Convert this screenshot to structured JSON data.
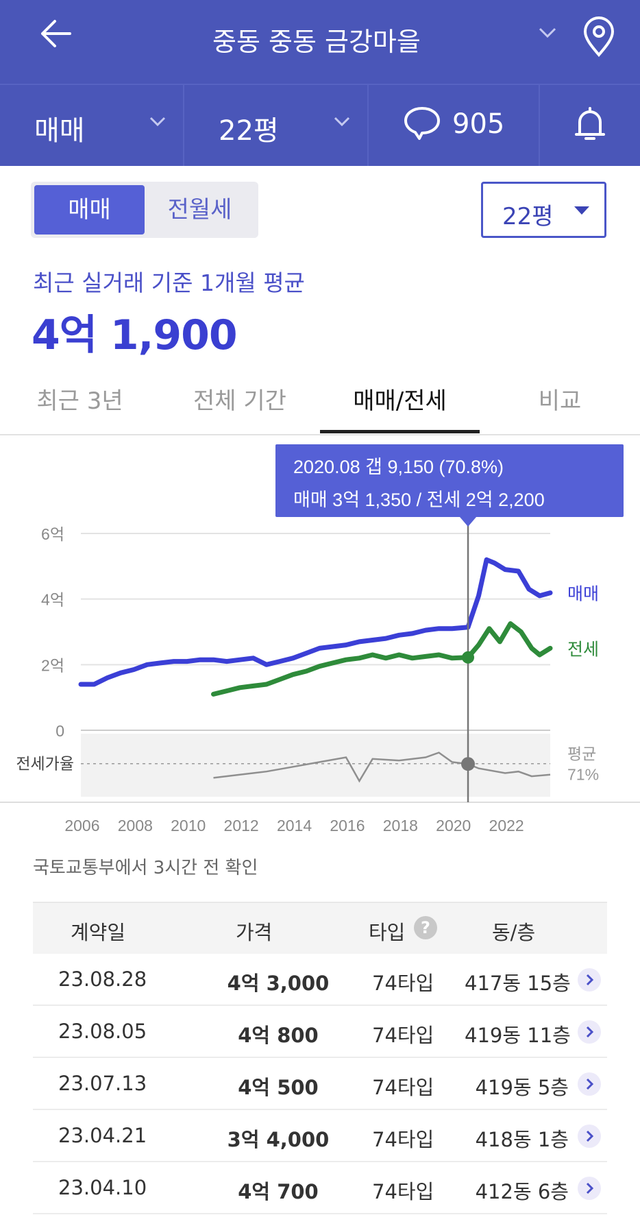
{
  "header": {
    "title": "중동 중동 금강마을",
    "trade_type": "매매",
    "area": "22평",
    "comment_count": "905"
  },
  "segment": {
    "sale": "매매",
    "rent": "전월세"
  },
  "area_select": {
    "value": "22평"
  },
  "average": {
    "label": "최근 실거래 기준 1개월 평균",
    "value": "4억 1,900"
  },
  "tabs": [
    "최근 3년",
    "전체 기간",
    "매매/전세",
    "비교"
  ],
  "chart_data": {
    "type": "line",
    "x_ticks": [
      "2006",
      "2008",
      "2010",
      "2012",
      "2014",
      "2016",
      "2018",
      "2020",
      "2022"
    ],
    "y_ticks": [
      "6억",
      "4억",
      "2억",
      "0"
    ],
    "ylim": [
      0,
      6
    ],
    "y_unit": "억",
    "xlim": [
      2006,
      2023.7
    ],
    "series": [
      {
        "name": "매매",
        "color": "#3b3fd6",
        "points": [
          [
            2006,
            1.4
          ],
          [
            2006.5,
            1.4
          ],
          [
            2007,
            1.6
          ],
          [
            2007.5,
            1.75
          ],
          [
            2008,
            1.85
          ],
          [
            2008.5,
            2.0
          ],
          [
            2009,
            2.05
          ],
          [
            2009.5,
            2.1
          ],
          [
            2010,
            2.1
          ],
          [
            2010.5,
            2.15
          ],
          [
            2011,
            2.15
          ],
          [
            2011.5,
            2.1
          ],
          [
            2012,
            2.15
          ],
          [
            2012.5,
            2.2
          ],
          [
            2013,
            2.0
          ],
          [
            2013.5,
            2.1
          ],
          [
            2014,
            2.2
          ],
          [
            2014.5,
            2.35
          ],
          [
            2015,
            2.5
          ],
          [
            2015.5,
            2.55
          ],
          [
            2016,
            2.6
          ],
          [
            2016.5,
            2.7
          ],
          [
            2017,
            2.75
          ],
          [
            2017.5,
            2.8
          ],
          [
            2018,
            2.9
          ],
          [
            2018.5,
            2.95
          ],
          [
            2019,
            3.05
          ],
          [
            2019.5,
            3.1
          ],
          [
            2020,
            3.1
          ],
          [
            2020.6,
            3.14
          ],
          [
            2021,
            4.1
          ],
          [
            2021.3,
            5.2
          ],
          [
            2021.6,
            5.1
          ],
          [
            2022,
            4.9
          ],
          [
            2022.5,
            4.85
          ],
          [
            2022.9,
            4.3
          ],
          [
            2023.3,
            4.1
          ],
          [
            2023.7,
            4.19
          ]
        ]
      },
      {
        "name": "전세",
        "color": "#2e8b3a",
        "points": [
          [
            2011,
            1.1
          ],
          [
            2011.5,
            1.2
          ],
          [
            2012,
            1.3
          ],
          [
            2012.5,
            1.35
          ],
          [
            2013,
            1.4
          ],
          [
            2013.5,
            1.55
          ],
          [
            2014,
            1.7
          ],
          [
            2014.5,
            1.8
          ],
          [
            2015,
            1.95
          ],
          [
            2015.5,
            2.05
          ],
          [
            2016,
            2.15
          ],
          [
            2016.5,
            2.2
          ],
          [
            2017,
            2.3
          ],
          [
            2017.5,
            2.2
          ],
          [
            2018,
            2.3
          ],
          [
            2018.5,
            2.2
          ],
          [
            2019,
            2.25
          ],
          [
            2019.5,
            2.3
          ],
          [
            2020,
            2.2
          ],
          [
            2020.6,
            2.22
          ],
          [
            2021,
            2.6
          ],
          [
            2021.4,
            3.1
          ],
          [
            2021.8,
            2.7
          ],
          [
            2022.2,
            3.25
          ],
          [
            2022.6,
            3.0
          ],
          [
            2023,
            2.5
          ],
          [
            2023.3,
            2.3
          ],
          [
            2023.7,
            2.5
          ]
        ]
      }
    ],
    "gap_series": {
      "label": "전세가율",
      "average_label": "평균",
      "average_value": "71%",
      "points": [
        [
          2011,
          62
        ],
        [
          2012,
          64
        ],
        [
          2013,
          66
        ],
        [
          2014,
          69
        ],
        [
          2015,
          72
        ],
        [
          2016,
          75
        ],
        [
          2016.5,
          60
        ],
        [
          2017,
          74
        ],
        [
          2018,
          73
        ],
        [
          2019,
          75
        ],
        [
          2019.5,
          78
        ],
        [
          2020,
          72
        ],
        [
          2020.6,
          70.8
        ],
        [
          2021,
          68
        ],
        [
          2022,
          65
        ],
        [
          2022.5,
          66
        ],
        [
          2023,
          63
        ],
        [
          2023.7,
          64
        ]
      ]
    },
    "labels": {
      "sale": "매매",
      "rent": "전세"
    },
    "tooltip": {
      "line1": "2020.08  갭 9,150 (70.8%)",
      "line2": "매매 3억 1,350 / 전세 2억 2,200",
      "x": 2020.6
    }
  },
  "source_note": "국토교통부에서 3시간 전 확인",
  "table": {
    "headers": [
      "계약일",
      "가격",
      "타입",
      "동/층"
    ],
    "help_glyph": "?",
    "rows": [
      {
        "date": "23.08.28",
        "price": "4억 3,000",
        "type": "74타입",
        "floor": "417동 15층"
      },
      {
        "date": "23.08.05",
        "price": "4억 800",
        "type": "74타입",
        "floor": "419동 11층"
      },
      {
        "date": "23.07.13",
        "price": "4억 500",
        "type": "74타입",
        "floor": "419동 5층"
      },
      {
        "date": "23.04.21",
        "price": "3억 4,000",
        "type": "74타입",
        "floor": "418동 1층"
      },
      {
        "date": "23.04.10",
        "price": "4억 700",
        "type": "74타입",
        "floor": "412동 6층"
      }
    ]
  }
}
